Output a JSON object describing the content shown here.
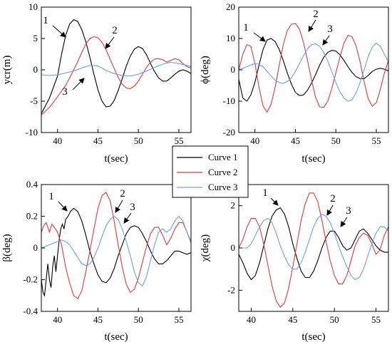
{
  "chart_data": [
    {
      "type": "line",
      "xlabel": "t(sec)",
      "ylabel": "ycr(m)",
      "xlim": [
        38,
        56.5
      ],
      "ylim": [
        -10,
        10
      ],
      "xticks": [
        "40",
        "45",
        "50",
        "55"
      ],
      "yticks": [
        "-10",
        "-5",
        "0",
        "5",
        "10"
      ],
      "series": [
        {
          "name": "Curve 1",
          "color": "#000000",
          "x": [
            38,
            39,
            40,
            40.5,
            41,
            41.5,
            42,
            42.5,
            43,
            43.5,
            44,
            44.5,
            45,
            45.5,
            46,
            46.5,
            47,
            47.5,
            48,
            48.5,
            49,
            49.5,
            50,
            50.5,
            51,
            51.5,
            52,
            52.5,
            53,
            53.5,
            54,
            54.5,
            55,
            55.5,
            56,
            56.5
          ],
          "y": [
            -7,
            -4.5,
            -1,
            2.5,
            5.5,
            7.3,
            8,
            7.7,
            6.4,
            4.5,
            2,
            -0.7,
            -3.2,
            -5,
            -5.9,
            -5.8,
            -4.9,
            -3.3,
            -1.4,
            0.6,
            2.2,
            3.3,
            3.7,
            3.4,
            2.4,
            1,
            -0.3,
            -1.3,
            -1.8,
            -1.8,
            -1.3,
            -0.7,
            -0.2,
            0,
            -0.2,
            -0.6
          ]
        },
        {
          "name": "Curve 2",
          "color": "#e03a3a",
          "x": [
            38,
            39,
            40,
            41,
            41.5,
            42,
            42.5,
            43,
            43.5,
            44,
            44.5,
            45,
            45.5,
            46,
            46.5,
            47,
            47.5,
            48,
            48.5,
            49,
            49.5,
            50,
            50.5,
            51,
            51.5,
            52,
            52.5,
            53,
            53.5,
            54,
            54.5,
            55,
            55.5,
            56,
            56.5
          ],
          "y": [
            -7.2,
            -6,
            -4.3,
            -2.5,
            -1.3,
            0,
            1.3,
            2.8,
            4.1,
            5,
            5.3,
            5.1,
            4.4,
            3.2,
            1.7,
            0.2,
            -1.2,
            -2.3,
            -2.9,
            -3,
            -2.6,
            -1.8,
            -0.7,
            0.4,
            1.2,
            1.7,
            1.8,
            1.6,
            1.2,
            1.5,
            1.8,
            1.6,
            1,
            0.5,
            0.3
          ]
        },
        {
          "name": "Curve 3",
          "color": "#6aa0e6",
          "x": [
            38,
            39,
            40,
            41,
            42,
            43,
            44,
            44.5,
            45,
            45.5,
            46,
            47,
            48,
            49,
            50,
            51,
            52,
            53,
            54,
            55,
            56,
            56.5
          ],
          "y": [
            -0.8,
            -0.9,
            -0.8,
            -0.5,
            -0.2,
            0.3,
            0.7,
            0.7,
            0.6,
            0.3,
            -0.1,
            -0.6,
            -0.9,
            -1,
            -0.7,
            -0.2,
            0.4,
            0.9,
            1.2,
            1,
            0.7,
            0.5
          ]
        }
      ],
      "annotations": [
        {
          "text": "1"
        },
        {
          "text": "2"
        },
        {
          "text": "3"
        }
      ]
    },
    {
      "type": "line",
      "xlabel": "t(sec)",
      "ylabel": "ϕ(deg)",
      "xlim": [
        38,
        56.5
      ],
      "ylim": [
        -20,
        20
      ],
      "xticks": [
        "40",
        "45",
        "50",
        "55"
      ],
      "yticks": [
        "-20",
        "-10",
        "0",
        "10",
        "20"
      ],
      "series": [
        {
          "name": "Curve 1",
          "color": "#000000",
          "x": [
            38,
            38.5,
            39,
            39.5,
            40,
            40.5,
            41,
            41.5,
            42,
            42.5,
            43,
            43.5,
            44,
            44.5,
            45,
            45.5,
            46,
            46.5,
            47,
            47.5,
            48,
            48.5,
            49,
            49.5,
            50,
            50.5,
            51,
            51.5,
            52,
            52.5,
            53,
            53.5,
            54,
            54.5,
            55,
            55.5,
            56,
            56.5
          ],
          "y": [
            -3,
            -9,
            -10,
            -8,
            -4,
            1.5,
            6.5,
            9.5,
            10,
            9,
            6.5,
            3,
            -1,
            -4.5,
            -7.2,
            -8.2,
            -8,
            -6.5,
            -4.2,
            -1.5,
            1.5,
            4,
            5.6,
            6.2,
            6,
            4.8,
            3,
            1,
            -0.8,
            -2.2,
            -2.8,
            -2.8,
            -1.8,
            -0.5,
            0.2,
            0.5,
            0.2,
            -0.3
          ]
        },
        {
          "name": "Curve 2",
          "color": "#e03a3a",
          "x": [
            38,
            38.5,
            39,
            39.5,
            40,
            40.5,
            41,
            41.5,
            42,
            42.5,
            43,
            43.5,
            44,
            44.5,
            45,
            45.5,
            46,
            46.5,
            47,
            47.5,
            48,
            48.5,
            49,
            49.5,
            50,
            50.5,
            51,
            51.5,
            52,
            52.5,
            53,
            53.5,
            54,
            54.5,
            55,
            55.5,
            56,
            56.5
          ],
          "y": [
            0,
            5,
            8,
            7.5,
            2,
            -5.5,
            -11.5,
            -13.5,
            -11,
            -5.5,
            1.5,
            8,
            12.5,
            14.5,
            14.8,
            13,
            8.8,
            3,
            -3.3,
            -8.8,
            -11.8,
            -12,
            -10,
            -6,
            -1,
            4,
            8.5,
            11,
            10.6,
            7.6,
            2.5,
            -3.8,
            -9.2,
            -11.6,
            -10.5,
            -6.3,
            -1,
            3
          ]
        },
        {
          "name": "Curve 3",
          "color": "#6aa0e6",
          "x": [
            38,
            38.5,
            39,
            39.5,
            40,
            40.5,
            41,
            41.5,
            42,
            42.5,
            43,
            43.5,
            44,
            44.5,
            45,
            45.5,
            46,
            46.5,
            47,
            47.5,
            48,
            48.5,
            49,
            49.5,
            50,
            50.5,
            51,
            51.5,
            52,
            52.5,
            53,
            53.5,
            54,
            54.5,
            55,
            55.5,
            56,
            56.5
          ],
          "y": [
            0,
            0.5,
            1,
            1.5,
            2,
            1.8,
            1,
            -0.5,
            -2,
            -3.3,
            -4.1,
            -4.3,
            -3.8,
            -2.5,
            -0.5,
            2,
            4.5,
            6.7,
            8,
            8.3,
            7.5,
            5.5,
            2.8,
            -0.5,
            -4,
            -7,
            -9,
            -10,
            -9.5,
            -7.3,
            -4,
            0,
            4.2,
            7.3,
            8.5,
            7.5,
            5,
            2.5
          ]
        }
      ],
      "annotations": [
        {
          "text": "1"
        },
        {
          "text": "2"
        },
        {
          "text": "3"
        }
      ]
    },
    {
      "type": "line",
      "xlabel": "t(sec)",
      "ylabel": "β(deg)",
      "xlim": [
        38,
        56.5
      ],
      "ylim": [
        -0.4,
        0.4
      ],
      "xticks": [
        "40",
        "45",
        "50",
        "55"
      ],
      "yticks": [
        "-0.4",
        "-0.2",
        "0",
        "0.2",
        "0.4"
      ],
      "series": [
        {
          "name": "Curve 1",
          "color": "#000000",
          "x": [
            38,
            38.2,
            38.4,
            38.6,
            38.8,
            39,
            39.2,
            39.4,
            39.6,
            39.8,
            40,
            40.2,
            40.4,
            40.6,
            40.8,
            41,
            41.3,
            41.6,
            42,
            42.5,
            43,
            43.5,
            44,
            44.5,
            45,
            45.5,
            46,
            46.5,
            47,
            47.5,
            48,
            48.5,
            49,
            49.5,
            50,
            50.5,
            51,
            51.5,
            52,
            52.5,
            53,
            53.5,
            54,
            54.5,
            55,
            55.5,
            56,
            56.5
          ],
          "y": [
            -0.2,
            -0.28,
            -0.3,
            -0.2,
            -0.1,
            -0.2,
            -0.25,
            -0.12,
            -0.05,
            -0.15,
            -0.05,
            0.05,
            0.12,
            0.15,
            0.12,
            0.18,
            0.2,
            0.23,
            0.25,
            0.23,
            0.17,
            0.08,
            -0.02,
            -0.1,
            -0.17,
            -0.21,
            -0.22,
            -0.19,
            -0.13,
            -0.05,
            0.02,
            0.09,
            0.13,
            0.14,
            0.13,
            0.09,
            0.04,
            -0.02,
            -0.07,
            -0.1,
            -0.1,
            -0.08,
            -0.05,
            -0.02,
            -0.02,
            -0.03,
            -0.04,
            -0.03
          ]
        },
        {
          "name": "Curve 2",
          "color": "#e03a3a",
          "x": [
            38,
            38.3,
            38.6,
            39,
            39.3,
            39.6,
            40,
            40.5,
            41,
            41.5,
            42,
            42.5,
            43,
            43.5,
            44,
            44.5,
            45,
            45.5,
            46,
            46.5,
            47,
            47.5,
            48,
            48.5,
            49,
            49.5,
            50,
            50.5,
            51,
            51.5,
            52,
            52.5,
            53,
            53.5,
            54,
            54.5,
            55,
            55.5,
            56,
            56.5
          ],
          "y": [
            0.1,
            0.14,
            0.16,
            0.1,
            0.15,
            0.13,
            0.1,
            0.02,
            -0.12,
            -0.22,
            -0.3,
            -0.32,
            -0.27,
            -0.15,
            -0.02,
            0.12,
            0.25,
            0.33,
            0.35,
            0.3,
            0.17,
            0.02,
            -0.12,
            -0.23,
            -0.28,
            -0.26,
            -0.19,
            -0.09,
            0.01,
            0.09,
            0.13,
            0.13,
            0.08,
            0.02,
            0.06,
            0.12,
            0.16,
            0.16,
            0.1,
            0.04
          ]
        },
        {
          "name": "Curve 3",
          "color": "#6aa0e6",
          "x": [
            38,
            38.5,
            39,
            39.5,
            40,
            40.5,
            41,
            41.5,
            42,
            42.5,
            43,
            43.5,
            44,
            44.5,
            45,
            45.5,
            46,
            46.5,
            47,
            47.5,
            48,
            48.5,
            49,
            49.5,
            50,
            50.5,
            51,
            51.5,
            52,
            52.5,
            53,
            53.5,
            54,
            54.5,
            55,
            55.5,
            56,
            56.5
          ],
          "y": [
            0,
            0.01,
            0.02,
            0.03,
            0.04,
            0.05,
            0.04,
            0.02,
            -0.02,
            -0.06,
            -0.1,
            -0.11,
            -0.1,
            -0.06,
            0,
            0.07,
            0.14,
            0.18,
            0.2,
            0.18,
            0.12,
            0.04,
            -0.05,
            -0.15,
            -0.22,
            -0.24,
            -0.18,
            -0.08,
            0.02,
            0.1,
            0.12,
            0.1,
            0.12,
            0.17,
            0.2,
            0.17,
            0.1,
            0.03
          ]
        }
      ],
      "annotations": [
        {
          "text": "1"
        },
        {
          "text": "2"
        },
        {
          "text": "3"
        }
      ]
    },
    {
      "type": "line",
      "xlabel": "t(sec)",
      "ylabel": "χ(deg)",
      "xlim": [
        38.5,
        56.5
      ],
      "ylim": [
        -3,
        3
      ],
      "xticks": [
        "40",
        "45",
        "50",
        "55"
      ],
      "yticks": [
        "-2",
        "0",
        "2"
      ],
      "series": [
        {
          "name": "Curve 1",
          "color": "#000000",
          "x": [
            38.5,
            39,
            39.5,
            40,
            40.5,
            41,
            41.5,
            42,
            42.5,
            43,
            43.5,
            44,
            44.5,
            45,
            45.5,
            46,
            46.5,
            47,
            47.5,
            48,
            48.5,
            49,
            49.5,
            50,
            50.5,
            51,
            51.5,
            52,
            52.5,
            53,
            53.5,
            54,
            54.5,
            55,
            55.5,
            56,
            56.5
          ],
          "y": [
            -0.3,
            -0.7,
            -1.2,
            -1.5,
            -1.3,
            -0.7,
            0.1,
            0.9,
            1.5,
            1.8,
            1.9,
            1.6,
            1,
            0.2,
            -0.5,
            -1.1,
            -1.4,
            -1.4,
            -1.1,
            -0.6,
            0,
            0.5,
            0.8,
            0.8,
            0.5,
            0.1,
            -0.1,
            0,
            0.4,
            0.8,
            0.9,
            0.7,
            0.4,
            0.1,
            -0.1,
            -0.2,
            -0.2
          ]
        },
        {
          "name": "Curve 2",
          "color": "#e03a3a",
          "x": [
            38.5,
            39,
            39.5,
            40,
            40.5,
            41,
            41.5,
            42,
            42.5,
            43,
            43.5,
            44,
            44.5,
            45,
            45.5,
            46,
            46.5,
            47,
            47.5,
            48,
            48.5,
            49,
            49.5,
            50,
            50.5,
            51,
            51.5,
            52,
            52.5,
            53,
            53.5,
            54,
            54.5,
            55,
            55.5,
            56,
            56.5
          ],
          "y": [
            0,
            0.4,
            1,
            1.4,
            1.4,
            1,
            0.2,
            -0.8,
            -1.8,
            -2.5,
            -2.8,
            -2.6,
            -1.9,
            -0.9,
            0.2,
            1.3,
            2.1,
            2.6,
            2.6,
            2.2,
            1.3,
            0.3,
            -0.6,
            -1.3,
            -1.7,
            -1.7,
            -1.3,
            -0.6,
            0.1,
            0.5,
            0.7,
            0.6,
            0.2,
            -0.3,
            -0.1,
            0.6,
            1
          ]
        },
        {
          "name": "Curve 3",
          "color": "#6aa0e6",
          "x": [
            38.5,
            39,
            39.5,
            40,
            40.5,
            41,
            41.5,
            42,
            42.5,
            43,
            43.5,
            44,
            44.5,
            45,
            45.5,
            46,
            46.5,
            47,
            47.5,
            48,
            48.5,
            49,
            49.5,
            50,
            50.5,
            51,
            51.5,
            52,
            52.5,
            53,
            53.5,
            54,
            54.5,
            55,
            55.5,
            56,
            56.5
          ],
          "y": [
            0,
            0,
            0,
            0.2,
            0.6,
            1,
            1.3,
            1.4,
            1.2,
            0.7,
            0.1,
            -0.4,
            -0.8,
            -1,
            -1,
            -0.7,
            -0.2,
            0.4,
            1,
            1.4,
            1.6,
            1.5,
            1.2,
            0.7,
            0.1,
            -0.4,
            -0.9,
            -1.3,
            -1.5,
            -1.4,
            -1,
            -0.4,
            0.2,
            0.7,
            1,
            1,
            0.8
          ]
        }
      ],
      "annotations": [
        {
          "text": "1"
        },
        {
          "text": "2"
        },
        {
          "text": "3"
        }
      ]
    }
  ],
  "legend": {
    "items": [
      {
        "label": "Curve 1",
        "color": "#000000"
      },
      {
        "label": "Curve 2",
        "color": "#e03a3a"
      },
      {
        "label": "Curve 3",
        "color": "#6aa0e6"
      }
    ]
  }
}
